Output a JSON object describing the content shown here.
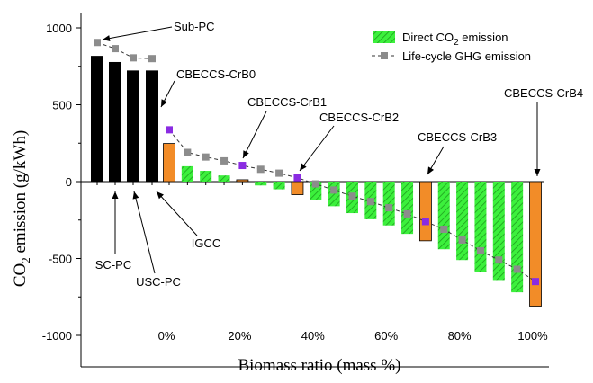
{
  "chart_data": {
    "type": "bar",
    "ylabel": "CO2 emission (g/kWh)",
    "xlabel": "Biomass ratio (mass %)",
    "ylim": [
      -1150,
      1000
    ],
    "yticks": [
      1000,
      500,
      0,
      -500,
      -1000
    ],
    "xticks": [
      "0%",
      "20%",
      "40%",
      "60%",
      "80%",
      "100%"
    ],
    "legend": {
      "placement": "top-right",
      "items": [
        "Direct CO2 emission",
        "Life-cycle GHG emission"
      ]
    },
    "colors": {
      "coal": "#000000",
      "highlight_bar": "#f28c28",
      "direct_fill": "#3cf03c",
      "direct_hatch": "#1d9e1d",
      "lifecycle": "#8c8c8c",
      "highlight_point": "#8a2be2"
    },
    "coal_plants": {
      "categories": [
        "Sub-PC",
        "SC-PC",
        "USC-PC",
        "IGCC"
      ],
      "direct": [
        815,
        775,
        720,
        720
      ],
      "lifecycle": [
        905,
        865,
        805,
        800
      ]
    },
    "biomass_series": {
      "x": [
        0,
        5,
        10,
        15,
        20,
        25,
        30,
        35,
        40,
        45,
        50,
        55,
        60,
        65,
        70,
        75,
        80,
        85,
        90,
        95,
        100
      ],
      "direct": [
        248,
        100,
        70,
        40,
        12,
        -25,
        -50,
        -85,
        -120,
        -160,
        -205,
        -245,
        -285,
        -340,
        -385,
        -440,
        -510,
        -590,
        -640,
        -720,
        -810
      ],
      "lifecycle": [
        337,
        190,
        160,
        135,
        105,
        80,
        55,
        25,
        -15,
        -55,
        -95,
        -130,
        -170,
        -210,
        -260,
        -310,
        -380,
        -450,
        -510,
        -570,
        -650
      ],
      "highlight_x": [
        0,
        20,
        35,
        70,
        100
      ]
    },
    "annotations": [
      "Sub-PC",
      "SC-PC",
      "USC-PC",
      "IGCC",
      "CBECCS-CrB0",
      "CBECCS-CrB1",
      "CBECCS-CrB2",
      "CBECCS-CrB3",
      "CBECCS-CrB4"
    ]
  }
}
